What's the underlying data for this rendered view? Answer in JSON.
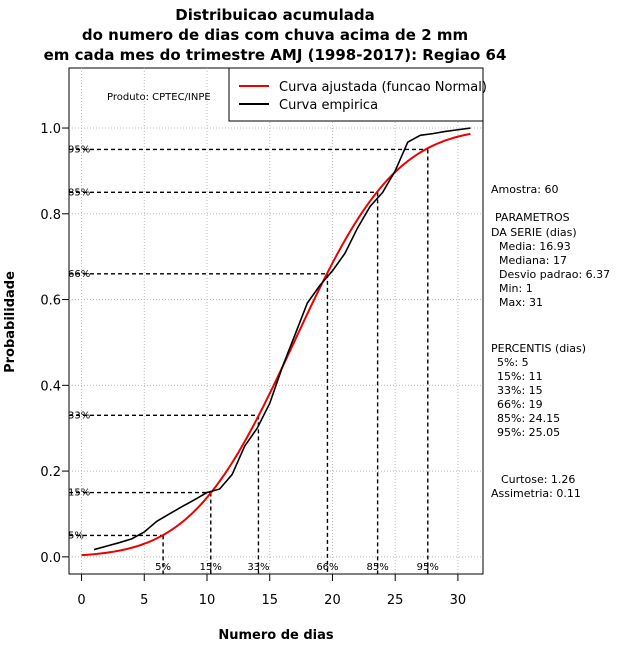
{
  "chart_data": {
    "type": "line",
    "title": [
      "Distribuicao acumulada",
      "do numero de dias com chuva acima de 2 mm",
      "em cada mes do trimestre AMJ (1998-2017): Regiao 64"
    ],
    "xlabel": "Numero de dias",
    "ylabel": "Probabilidade",
    "xlim": [
      -1,
      32
    ],
    "ylim": [
      -0.04,
      1.14
    ],
    "xticks": [
      "0",
      "5",
      "10",
      "15",
      "20",
      "25",
      "30"
    ],
    "yticks": [
      "0.0",
      "0.2",
      "0.4",
      "0.6",
      "0.8",
      "1.0"
    ],
    "product": "Produto: CPTEC/INPE",
    "legend": [
      {
        "label": "Curva ajustada (funcao Normal)",
        "color": "#ee0000"
      },
      {
        "label": "Curva empirica",
        "color": "#000000"
      }
    ],
    "fitted": {
      "name": "Curva ajustada (funcao Normal)",
      "mean": 16.93,
      "sd": 6.37,
      "x_from": 0,
      "x_to": 31
    },
    "empirical": {
      "name": "Curva empirica",
      "x": [
        1,
        2,
        3,
        4,
        5,
        6,
        7,
        8,
        9,
        10,
        11,
        12,
        13,
        14,
        15,
        16,
        17,
        18,
        19,
        20,
        21,
        22,
        23,
        24,
        25,
        26,
        27,
        28,
        29,
        30,
        31
      ],
      "y": [
        0.017,
        0.025,
        0.033,
        0.042,
        0.058,
        0.083,
        0.1,
        0.117,
        0.133,
        0.15,
        0.158,
        0.192,
        0.258,
        0.3,
        0.358,
        0.442,
        0.517,
        0.592,
        0.633,
        0.667,
        0.708,
        0.767,
        0.817,
        0.85,
        0.9,
        0.967,
        0.983,
        0.987,
        0.992,
        0.996,
        1.0
      ]
    },
    "percentiles": [
      {
        "label": "5%",
        "p": 0.05,
        "x": 6.5
      },
      {
        "label": "15%",
        "p": 0.15,
        "x": 10.3
      },
      {
        "label": "33%",
        "p": 0.33,
        "x": 14.1
      },
      {
        "label": "66%",
        "p": 0.66,
        "x": 19.6
      },
      {
        "label": "85%",
        "p": 0.85,
        "x": 23.6
      },
      {
        "label": "95%",
        "p": 0.95,
        "x": 27.6
      }
    ],
    "side_text": [
      "Amostra: 60",
      "PARAMETROS",
      "DA SERIE (dias)",
      "Media: 16.93",
      "Mediana: 17",
      "Desvio padrao: 6.37",
      "Min: 1",
      "Max: 31",
      "PERCENTIS (dias)",
      "5%: 5",
      "15%: 11",
      "33%: 15",
      "66%: 19",
      "85%: 24.15",
      "95%: 25.05",
      "Curtose: 1.26",
      "Assimetria: 0.11"
    ]
  }
}
